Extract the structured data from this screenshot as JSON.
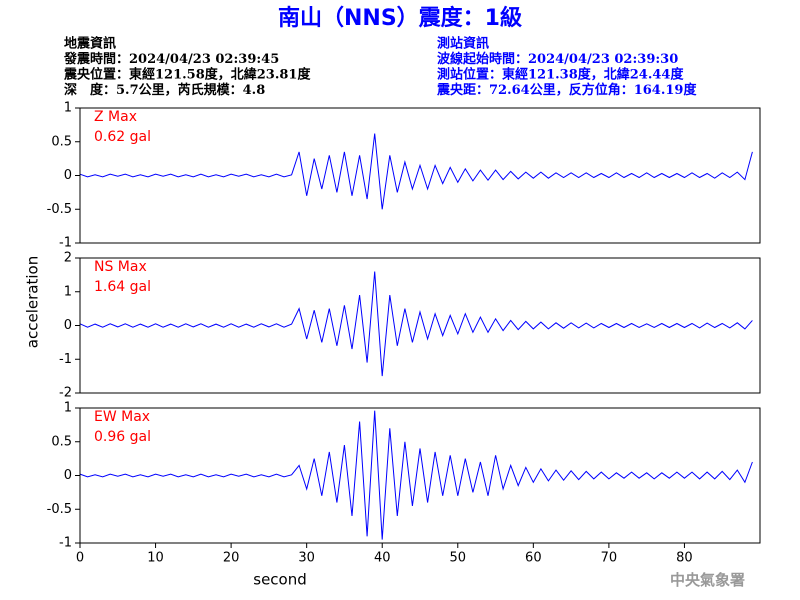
{
  "title": "南山（NNS）震度：1級",
  "event_info": [
    "地震資訊",
    "發震時間：2024/04/23 02:39:45",
    "震央位置：東經121.58度，北緯23.81度",
    "深　度：5.7公里，芮氏規模：4.8"
  ],
  "station_info": [
    "測站資訊",
    "波線起始時間：2024/04/23 02:39:30",
    "測站位置：東經121.38度，北緯24.44度",
    "震央距：72.64公里，反方位角：164.19度"
  ],
  "y_label": "acceleration",
  "x_label": "second",
  "footer": "中央氣象署",
  "chart_data": [
    {
      "type": "line",
      "annotations": [
        "Z Max",
        "0.62 gal"
      ],
      "color": "#0000ff",
      "xlim": [
        0,
        90
      ],
      "ylim": [
        -1,
        1
      ],
      "yticks": [
        1,
        0.5,
        0,
        -0.5,
        -1
      ],
      "x": [
        0,
        1,
        2,
        3,
        4,
        5,
        6,
        7,
        8,
        9,
        10,
        11,
        12,
        13,
        14,
        15,
        16,
        17,
        18,
        19,
        20,
        21,
        22,
        23,
        24,
        25,
        26,
        27,
        28,
        29,
        30,
        31,
        32,
        33,
        34,
        35,
        36,
        37,
        38,
        39,
        40,
        41,
        42,
        43,
        44,
        45,
        46,
        47,
        48,
        49,
        50,
        51,
        52,
        53,
        54,
        55,
        56,
        57,
        58,
        59,
        60,
        61,
        62,
        63,
        64,
        65,
        66,
        67,
        68,
        69,
        70,
        71,
        72,
        73,
        74,
        75,
        76,
        77,
        78,
        79,
        80,
        81,
        82,
        83,
        84,
        85,
        86,
        87,
        88,
        89
      ],
      "values": [
        0.02,
        -0.02,
        0.01,
        -0.02,
        0.02,
        -0.01,
        0.02,
        -0.02,
        0.01,
        -0.02,
        0.02,
        -0.01,
        0.02,
        -0.02,
        0.01,
        -0.02,
        0.02,
        -0.02,
        0.01,
        -0.02,
        0.02,
        -0.01,
        0.02,
        -0.02,
        0.01,
        -0.02,
        0.02,
        -0.02,
        0.01,
        0.35,
        -0.3,
        0.25,
        -0.2,
        0.3,
        -0.25,
        0.35,
        -0.3,
        0.3,
        -0.35,
        0.62,
        -0.5,
        0.3,
        -0.25,
        0.2,
        -0.2,
        0.15,
        -0.2,
        0.15,
        -0.12,
        0.12,
        -0.1,
        0.1,
        -0.08,
        0.08,
        -0.07,
        0.08,
        -0.06,
        0.06,
        -0.05,
        0.05,
        -0.04,
        0.05,
        -0.04,
        0.04,
        -0.03,
        0.04,
        -0.03,
        0.04,
        -0.03,
        0.03,
        -0.03,
        0.04,
        -0.03,
        0.03,
        -0.03,
        0.04,
        -0.03,
        0.03,
        -0.03,
        0.03,
        -0.03,
        0.04,
        -0.03,
        0.03,
        -0.04,
        0.04,
        -0.03,
        0.05,
        -0.06,
        0.35
      ]
    },
    {
      "type": "line",
      "annotations": [
        "NS Max",
        "1.64 gal"
      ],
      "color": "#0000ff",
      "xlim": [
        0,
        90
      ],
      "ylim": [
        -2,
        2
      ],
      "yticks": [
        2,
        1,
        0,
        -1,
        -2
      ],
      "x": [
        0,
        1,
        2,
        3,
        4,
        5,
        6,
        7,
        8,
        9,
        10,
        11,
        12,
        13,
        14,
        15,
        16,
        17,
        18,
        19,
        20,
        21,
        22,
        23,
        24,
        25,
        26,
        27,
        28,
        29,
        30,
        31,
        32,
        33,
        34,
        35,
        36,
        37,
        38,
        39,
        40,
        41,
        42,
        43,
        44,
        45,
        46,
        47,
        48,
        49,
        50,
        51,
        52,
        53,
        54,
        55,
        56,
        57,
        58,
        59,
        60,
        61,
        62,
        63,
        64,
        65,
        66,
        67,
        68,
        69,
        70,
        71,
        72,
        73,
        74,
        75,
        76,
        77,
        78,
        79,
        80,
        81,
        82,
        83,
        84,
        85,
        86,
        87,
        88,
        89
      ],
      "values": [
        0.05,
        -0.05,
        0.04,
        -0.05,
        0.05,
        -0.04,
        0.05,
        -0.05,
        0.04,
        -0.05,
        0.05,
        -0.05,
        0.04,
        -0.05,
        0.05,
        -0.04,
        0.05,
        -0.05,
        0.04,
        -0.05,
        0.05,
        -0.05,
        0.04,
        -0.05,
        0.05,
        -0.04,
        0.05,
        -0.05,
        0.04,
        0.5,
        -0.4,
        0.45,
        -0.5,
        0.5,
        -0.6,
        0.6,
        -0.7,
        0.9,
        -1.1,
        1.6,
        -1.5,
        0.9,
        -0.6,
        0.5,
        -0.5,
        0.4,
        -0.4,
        0.35,
        -0.3,
        0.3,
        -0.25,
        0.35,
        -0.2,
        0.25,
        -0.2,
        0.2,
        -0.15,
        0.15,
        -0.12,
        0.12,
        -0.1,
        0.1,
        -0.1,
        0.08,
        -0.08,
        0.08,
        -0.07,
        0.07,
        -0.07,
        0.06,
        -0.06,
        0.06,
        -0.06,
        0.06,
        -0.06,
        0.05,
        -0.06,
        0.06,
        -0.06,
        0.06,
        -0.06,
        0.06,
        -0.07,
        0.07,
        -0.06,
        0.06,
        -0.07,
        0.08,
        -0.1,
        0.15
      ]
    },
    {
      "type": "line",
      "annotations": [
        "EW Max",
        "0.96 gal"
      ],
      "color": "#0000ff",
      "xlim": [
        0,
        90
      ],
      "ylim": [
        -1,
        1
      ],
      "yticks": [
        1,
        0.5,
        0,
        -0.5,
        -1
      ],
      "xticks": [
        0,
        10,
        20,
        30,
        40,
        50,
        60,
        70,
        80
      ],
      "x": [
        0,
        1,
        2,
        3,
        4,
        5,
        6,
        7,
        8,
        9,
        10,
        11,
        12,
        13,
        14,
        15,
        16,
        17,
        18,
        19,
        20,
        21,
        22,
        23,
        24,
        25,
        26,
        27,
        28,
        29,
        30,
        31,
        32,
        33,
        34,
        35,
        36,
        37,
        38,
        39,
        40,
        41,
        42,
        43,
        44,
        45,
        46,
        47,
        48,
        49,
        50,
        51,
        52,
        53,
        54,
        55,
        56,
        57,
        58,
        59,
        60,
        61,
        62,
        63,
        64,
        65,
        66,
        67,
        68,
        69,
        70,
        71,
        72,
        73,
        74,
        75,
        76,
        77,
        78,
        79,
        80,
        81,
        82,
        83,
        84,
        85,
        86,
        87,
        88,
        89
      ],
      "values": [
        0.02,
        -0.02,
        0.01,
        -0.02,
        0.02,
        -0.01,
        0.02,
        -0.02,
        0.01,
        -0.02,
        0.02,
        -0.01,
        0.02,
        -0.02,
        0.01,
        -0.02,
        0.02,
        -0.02,
        0.01,
        -0.02,
        0.02,
        -0.01,
        0.02,
        -0.02,
        0.01,
        -0.02,
        0.02,
        -0.02,
        0.01,
        0.15,
        -0.2,
        0.25,
        -0.3,
        0.35,
        -0.4,
        0.45,
        -0.6,
        0.8,
        -0.9,
        0.96,
        -0.95,
        0.7,
        -0.6,
        0.5,
        -0.45,
        0.4,
        -0.4,
        0.35,
        -0.3,
        0.3,
        -0.3,
        0.25,
        -0.25,
        0.2,
        -0.3,
        0.3,
        -0.2,
        0.15,
        -0.15,
        0.12,
        -0.1,
        0.1,
        -0.08,
        0.08,
        -0.07,
        0.07,
        -0.06,
        0.06,
        -0.05,
        0.05,
        -0.05,
        0.04,
        -0.04,
        0.05,
        -0.04,
        0.04,
        -0.05,
        0.04,
        -0.04,
        0.05,
        -0.04,
        0.05,
        -0.05,
        0.05,
        -0.05,
        0.06,
        -0.06,
        0.08,
        -0.1,
        0.2
      ]
    }
  ]
}
